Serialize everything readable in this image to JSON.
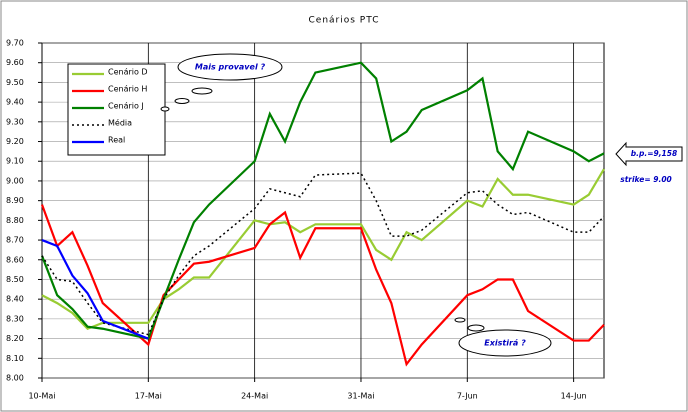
{
  "chart_data": {
    "type": "line",
    "title": "Cenários PTC",
    "x": [
      0,
      1,
      2,
      3,
      4,
      7,
      8,
      9,
      10,
      11,
      14,
      15,
      16,
      17,
      18,
      21,
      22,
      23,
      24,
      25,
      28,
      29,
      30,
      31,
      32,
      35,
      36,
      37
    ],
    "xlim": [
      0,
      37
    ],
    "xticks": [
      {
        "value": 0,
        "label": "10-Mai"
      },
      {
        "value": 7,
        "label": "17-Mai"
      },
      {
        "value": 14,
        "label": "24-Mai"
      },
      {
        "value": 21,
        "label": "31-Mai"
      },
      {
        "value": 28,
        "label": "7-Jun"
      },
      {
        "value": 35,
        "label": "14-Jun"
      }
    ],
    "ylim": [
      8,
      9.7
    ],
    "yticks": [
      {
        "value": 8,
        "label": "8.00"
      },
      {
        "value": 8.1,
        "label": "8.10"
      },
      {
        "value": 8.2,
        "label": "8.20"
      },
      {
        "value": 8.3,
        "label": "8.30"
      },
      {
        "value": 8.4,
        "label": "8.40"
      },
      {
        "value": 8.5,
        "label": "8.50"
      },
      {
        "value": 8.6,
        "label": "8.60"
      },
      {
        "value": 8.7,
        "label": "8.70"
      },
      {
        "value": 8.8,
        "label": "8.80"
      },
      {
        "value": 8.9,
        "label": "8.90"
      },
      {
        "value": 9,
        "label": "9.00"
      },
      {
        "value": 9.1,
        "label": "9.10"
      },
      {
        "value": 9.2,
        "label": "9.20"
      },
      {
        "value": 9.3,
        "label": "9.30"
      },
      {
        "value": 9.4,
        "label": "9.40"
      },
      {
        "value": 9.5,
        "label": "9.50"
      },
      {
        "value": 9.6,
        "label": "9.60"
      },
      {
        "value": 9.7,
        "label": "9.70"
      }
    ],
    "grid": true,
    "legend": "upper left",
    "series": [
      {
        "name": "Cenário D",
        "color": "#99cc33",
        "values": [
          8.42,
          8.38,
          8.33,
          8.25,
          8.28,
          8.28,
          8.4,
          8.45,
          8.51,
          8.51,
          8.8,
          8.78,
          8.79,
          8.74,
          8.78,
          8.78,
          8.65,
          8.6,
          8.74,
          8.7,
          8.9,
          8.87,
          9.01,
          8.93,
          8.93,
          8.88,
          8.93,
          9.06
        ]
      },
      {
        "name": "Cenário H",
        "color": "#ff0000",
        "values": [
          8.88,
          8.67,
          8.74,
          8.57,
          8.38,
          8.17,
          8.42,
          8.5,
          8.58,
          8.59,
          8.66,
          8.78,
          8.84,
          8.61,
          8.76,
          8.76,
          8.55,
          8.38,
          8.07,
          8.17,
          8.42,
          8.45,
          8.5,
          8.5,
          8.34,
          8.19,
          8.19,
          8.27
        ]
      },
      {
        "name": "Cenário J",
        "color": "#008000",
        "values": [
          8.62,
          8.42,
          8.35,
          8.26,
          8.25,
          8.2,
          8.4,
          8.6,
          8.79,
          8.88,
          9.1,
          9.34,
          9.2,
          9.4,
          9.55,
          9.6,
          9.52,
          9.2,
          9.25,
          9.36,
          9.46,
          9.52,
          9.15,
          9.06,
          9.25,
          9.15,
          9.1,
          9.14
        ]
      },
      {
        "name": "Média",
        "color": "#000000",
        "dash": "2 3",
        "values": [
          8.62,
          8.5,
          8.49,
          8.38,
          8.28,
          8.22,
          8.4,
          8.52,
          8.62,
          8.67,
          8.86,
          8.96,
          8.94,
          8.92,
          9.03,
          9.04,
          8.9,
          8.72,
          8.72,
          8.75,
          8.94,
          8.95,
          8.88,
          8.83,
          8.84,
          8.74,
          8.74,
          8.82
        ]
      },
      {
        "name": "Real",
        "color": "#0000ff",
        "values": [
          8.7,
          8.67,
          8.52,
          8.43,
          8.29,
          8.2,
          null,
          null,
          null,
          null,
          null,
          null,
          null,
          null,
          null,
          null,
          null,
          null,
          null,
          null,
          null,
          null,
          null,
          null,
          null,
          null,
          null,
          null
        ]
      }
    ],
    "annotations": [
      "Mais provavel ?",
      "Existirá ?",
      "b.p.=9,158",
      "strike= 9.00"
    ]
  }
}
